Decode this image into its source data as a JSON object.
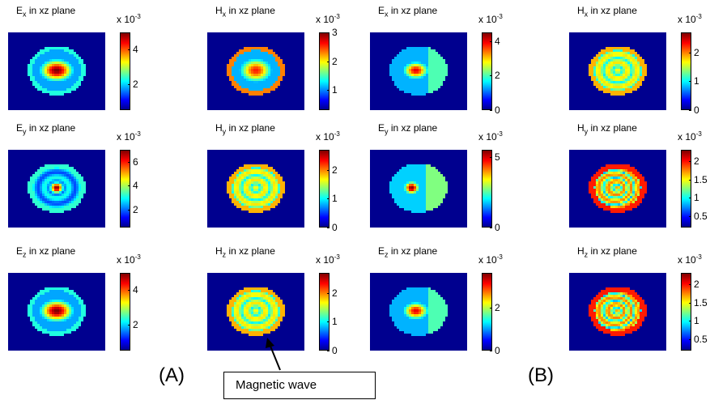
{
  "colors": {
    "background": "#00008f",
    "low": "#0000ff",
    "mid": "#00ffff",
    "high": "#ff0000"
  },
  "colorbar_exponent": "x 10",
  "colorbar_exponent_power": "-3",
  "group_labels": [
    "(A)",
    "(B)"
  ],
  "annotation": {
    "text": "Magnetic wave"
  },
  "chart_data": [
    {
      "type": "heatmap",
      "group": "A",
      "field": "E",
      "sub": "x",
      "title_rest": " in xz plane",
      "ticks": [
        "2",
        "4"
      ],
      "vmin": 0.5,
      "vmax": 5.0,
      "pattern": "center-block"
    },
    {
      "type": "heatmap",
      "group": "A",
      "field": "H",
      "sub": "x",
      "title_rest": " in xz plane",
      "ticks": [
        "1",
        "2",
        "3"
      ],
      "vmin": 0.3,
      "vmax": 3.0,
      "pattern": "ring-center"
    },
    {
      "type": "heatmap",
      "group": "B",
      "field": "E",
      "sub": "x",
      "title_rest": " in xz plane",
      "ticks": [
        "0",
        "2",
        "4"
      ],
      "vmin": 0,
      "vmax": 4.5,
      "pattern": "asym-center"
    },
    {
      "type": "heatmap",
      "group": "B",
      "field": "H",
      "sub": "x",
      "title_rest": " in xz plane",
      "ticks": [
        "0",
        "1",
        "2"
      ],
      "vmin": 0,
      "vmax": 2.7,
      "pattern": "rings"
    },
    {
      "type": "heatmap",
      "group": "A",
      "field": "E",
      "sub": "y",
      "title_rest": " in xz plane",
      "ticks": [
        "2",
        "4",
        "6"
      ],
      "vmin": 0.5,
      "vmax": 7.0,
      "pattern": "center-dot"
    },
    {
      "type": "heatmap",
      "group": "A",
      "field": "H",
      "sub": "y",
      "title_rest": " in xz plane",
      "ticks": [
        "0",
        "1",
        "2"
      ],
      "vmin": 0,
      "vmax": 2.7,
      "pattern": "rings"
    },
    {
      "type": "heatmap",
      "group": "B",
      "field": "E",
      "sub": "y",
      "title_rest": " in xz plane",
      "ticks": [
        "0",
        "5"
      ],
      "vmin": 0,
      "vmax": 5.5,
      "pattern": "asym-dot"
    },
    {
      "type": "heatmap",
      "group": "B",
      "field": "H",
      "sub": "y",
      "title_rest": " in xz plane",
      "ticks": [
        "0.5",
        "1",
        "1.5",
        "2"
      ],
      "vmin": 0.2,
      "vmax": 2.3,
      "pattern": "rings-dense"
    },
    {
      "type": "heatmap",
      "group": "A",
      "field": "E",
      "sub": "z",
      "title_rest": " in xz plane",
      "ticks": [
        "2",
        "4"
      ],
      "vmin": 0.5,
      "vmax": 5.0,
      "pattern": "center-block"
    },
    {
      "type": "heatmap",
      "group": "A",
      "field": "H",
      "sub": "z",
      "title_rest": " in xz plane",
      "ticks": [
        "0",
        "1",
        "2"
      ],
      "vmin": 0,
      "vmax": 2.7,
      "pattern": "rings"
    },
    {
      "type": "heatmap",
      "group": "B",
      "field": "E",
      "sub": "z",
      "title_rest": " in xz plane",
      "ticks": [
        "0",
        "2"
      ],
      "vmin": 0,
      "vmax": 3.6,
      "pattern": "asym-center"
    },
    {
      "type": "heatmap",
      "group": "B",
      "field": "H",
      "sub": "z",
      "title_rest": " in xz plane",
      "ticks": [
        "0.5",
        "1",
        "1.5",
        "2"
      ],
      "vmin": 0.2,
      "vmax": 2.3,
      "pattern": "rings-dense"
    }
  ]
}
